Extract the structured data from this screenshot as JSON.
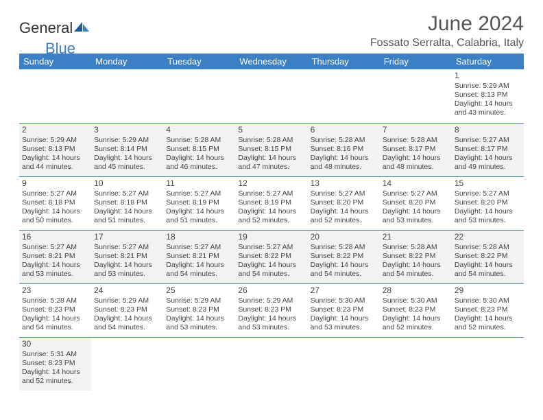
{
  "brand": {
    "part1": "General",
    "part2": "Blue"
  },
  "title": "June 2024",
  "location": "Fossato Serralta, Calabria, Italy",
  "colors": {
    "header_bg": "#3b7fc4",
    "header_text": "#ffffff",
    "row_alt_bg": "#f2f2f2",
    "border": "#3b7fc4",
    "text": "#444444",
    "title_text": "#555555"
  },
  "weekdays": [
    "Sunday",
    "Monday",
    "Tuesday",
    "Wednesday",
    "Thursday",
    "Friday",
    "Saturday"
  ],
  "first_day_index": 6,
  "days": [
    {
      "n": 1,
      "sunrise": "5:29 AM",
      "sunset": "8:13 PM",
      "daylight": "14 hours and 43 minutes."
    },
    {
      "n": 2,
      "sunrise": "5:29 AM",
      "sunset": "8:13 PM",
      "daylight": "14 hours and 44 minutes."
    },
    {
      "n": 3,
      "sunrise": "5:29 AM",
      "sunset": "8:14 PM",
      "daylight": "14 hours and 45 minutes."
    },
    {
      "n": 4,
      "sunrise": "5:28 AM",
      "sunset": "8:15 PM",
      "daylight": "14 hours and 46 minutes."
    },
    {
      "n": 5,
      "sunrise": "5:28 AM",
      "sunset": "8:15 PM",
      "daylight": "14 hours and 47 minutes."
    },
    {
      "n": 6,
      "sunrise": "5:28 AM",
      "sunset": "8:16 PM",
      "daylight": "14 hours and 48 minutes."
    },
    {
      "n": 7,
      "sunrise": "5:28 AM",
      "sunset": "8:17 PM",
      "daylight": "14 hours and 48 minutes."
    },
    {
      "n": 8,
      "sunrise": "5:27 AM",
      "sunset": "8:17 PM",
      "daylight": "14 hours and 49 minutes."
    },
    {
      "n": 9,
      "sunrise": "5:27 AM",
      "sunset": "8:18 PM",
      "daylight": "14 hours and 50 minutes."
    },
    {
      "n": 10,
      "sunrise": "5:27 AM",
      "sunset": "8:18 PM",
      "daylight": "14 hours and 51 minutes."
    },
    {
      "n": 11,
      "sunrise": "5:27 AM",
      "sunset": "8:19 PM",
      "daylight": "14 hours and 51 minutes."
    },
    {
      "n": 12,
      "sunrise": "5:27 AM",
      "sunset": "8:19 PM",
      "daylight": "14 hours and 52 minutes."
    },
    {
      "n": 13,
      "sunrise": "5:27 AM",
      "sunset": "8:20 PM",
      "daylight": "14 hours and 52 minutes."
    },
    {
      "n": 14,
      "sunrise": "5:27 AM",
      "sunset": "8:20 PM",
      "daylight": "14 hours and 53 minutes."
    },
    {
      "n": 15,
      "sunrise": "5:27 AM",
      "sunset": "8:20 PM",
      "daylight": "14 hours and 53 minutes."
    },
    {
      "n": 16,
      "sunrise": "5:27 AM",
      "sunset": "8:21 PM",
      "daylight": "14 hours and 53 minutes."
    },
    {
      "n": 17,
      "sunrise": "5:27 AM",
      "sunset": "8:21 PM",
      "daylight": "14 hours and 53 minutes."
    },
    {
      "n": 18,
      "sunrise": "5:27 AM",
      "sunset": "8:21 PM",
      "daylight": "14 hours and 54 minutes."
    },
    {
      "n": 19,
      "sunrise": "5:27 AM",
      "sunset": "8:22 PM",
      "daylight": "14 hours and 54 minutes."
    },
    {
      "n": 20,
      "sunrise": "5:28 AM",
      "sunset": "8:22 PM",
      "daylight": "14 hours and 54 minutes."
    },
    {
      "n": 21,
      "sunrise": "5:28 AM",
      "sunset": "8:22 PM",
      "daylight": "14 hours and 54 minutes."
    },
    {
      "n": 22,
      "sunrise": "5:28 AM",
      "sunset": "8:22 PM",
      "daylight": "14 hours and 54 minutes."
    },
    {
      "n": 23,
      "sunrise": "5:28 AM",
      "sunset": "8:23 PM",
      "daylight": "14 hours and 54 minutes."
    },
    {
      "n": 24,
      "sunrise": "5:29 AM",
      "sunset": "8:23 PM",
      "daylight": "14 hours and 54 minutes."
    },
    {
      "n": 25,
      "sunrise": "5:29 AM",
      "sunset": "8:23 PM",
      "daylight": "14 hours and 53 minutes."
    },
    {
      "n": 26,
      "sunrise": "5:29 AM",
      "sunset": "8:23 PM",
      "daylight": "14 hours and 53 minutes."
    },
    {
      "n": 27,
      "sunrise": "5:30 AM",
      "sunset": "8:23 PM",
      "daylight": "14 hours and 53 minutes."
    },
    {
      "n": 28,
      "sunrise": "5:30 AM",
      "sunset": "8:23 PM",
      "daylight": "14 hours and 52 minutes."
    },
    {
      "n": 29,
      "sunrise": "5:30 AM",
      "sunset": "8:23 PM",
      "daylight": "14 hours and 52 minutes."
    },
    {
      "n": 30,
      "sunrise": "5:31 AM",
      "sunset": "8:23 PM",
      "daylight": "14 hours and 52 minutes."
    }
  ],
  "labels": {
    "sunrise": "Sunrise:",
    "sunset": "Sunset:",
    "daylight": "Daylight:"
  }
}
